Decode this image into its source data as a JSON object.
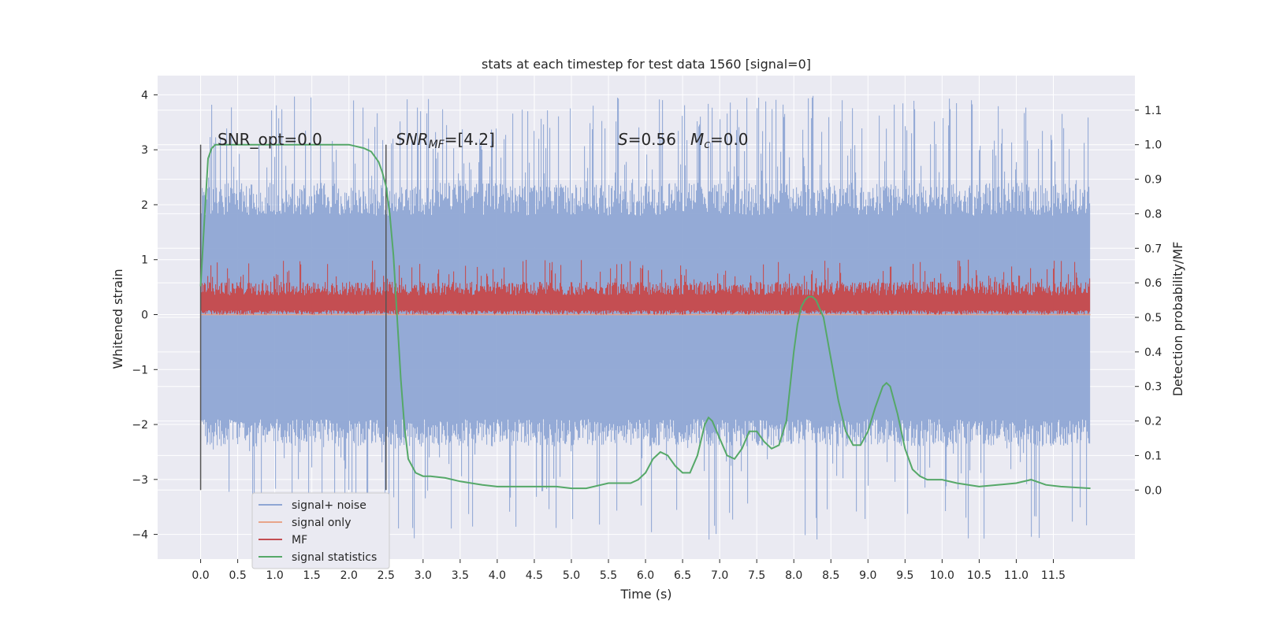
{
  "chart_data": {
    "type": "line",
    "title": "stats at each timestep for test data 1560 [signal=0]",
    "xlabel": "Time (s)",
    "ylabel": "Whitened strain",
    "ylabel_right": "Detection probability/MF",
    "xlim": [
      -0.58,
      12.6
    ],
    "ylim": [
      -4.45,
      4.35
    ],
    "ylim_right": [
      -0.2,
      1.2
    ],
    "x_ticks": [
      "0.0",
      "0.5",
      "1.0",
      "1.5",
      "2.0",
      "2.5",
      "3.0",
      "3.5",
      "4.0",
      "4.5",
      "5.0",
      "5.5",
      "6.0",
      "6.5",
      "7.0",
      "7.5",
      "8.0",
      "8.5",
      "9.0",
      "9.5",
      "10.0",
      "10.5",
      "11.0",
      "11.5"
    ],
    "y_ticks": [
      "−4",
      "−3",
      "−2",
      "−1",
      "0",
      "1",
      "2",
      "3",
      "4"
    ],
    "y_ticks_right": [
      "0.0",
      "0.1",
      "0.2",
      "0.3",
      "0.4",
      "0.5",
      "0.6",
      "0.7",
      "0.8",
      "0.9",
      "1.0",
      "1.1"
    ],
    "grid": true,
    "legend_position": "lower-left",
    "annotations": {
      "snr_opt": "SNR_opt=0.0",
      "snr_mf_base": "SNR",
      "snr_mf_sub": "MF",
      "snr_mf_rest": "=[4.2]",
      "s_label": "S",
      "s_value": "=0.56",
      "mc_label": "M",
      "mc_sub": "c",
      "mc_value": "=0.0"
    },
    "vlines": [
      0.0,
      2.5
    ],
    "series": [
      {
        "name": "signal+ noise",
        "color": "#8fa6d4",
        "axis": "left",
        "x_range": [
          0.0,
          12.0
        ],
        "envelope_typical": [
          -2.3,
          2.4
        ],
        "extremes": [
          -4.1,
          4.0
        ]
      },
      {
        "name": "signal only",
        "color": "#e8a58a",
        "axis": "left",
        "x": [
          0.0,
          12.0
        ],
        "y": [
          0.0,
          0.0
        ]
      },
      {
        "name": "MF",
        "color": "#c44e52",
        "axis": "left",
        "x_range": [
          0.0,
          12.0
        ],
        "envelope_typical": [
          0.0,
          0.6
        ],
        "extremes": [
          0.0,
          1.0
        ]
      },
      {
        "name": "signal statistics",
        "color": "#55a868",
        "axis": "right",
        "x": [
          0.0,
          0.05,
          0.1,
          0.15,
          0.2,
          0.3,
          0.5,
          1.0,
          1.5,
          2.0,
          2.2,
          2.3,
          2.4,
          2.45,
          2.5,
          2.55,
          2.6,
          2.65,
          2.7,
          2.75,
          2.8,
          2.9,
          3.0,
          3.1,
          3.3,
          3.5,
          3.8,
          4.0,
          4.2,
          4.5,
          4.8,
          5.0,
          5.2,
          5.5,
          5.8,
          5.9,
          6.0,
          6.1,
          6.2,
          6.3,
          6.4,
          6.5,
          6.6,
          6.7,
          6.8,
          6.85,
          6.9,
          7.0,
          7.1,
          7.2,
          7.3,
          7.4,
          7.5,
          7.6,
          7.7,
          7.8,
          7.9,
          8.0,
          8.05,
          8.1,
          8.15,
          8.2,
          8.25,
          8.3,
          8.4,
          8.5,
          8.6,
          8.7,
          8.8,
          8.9,
          9.0,
          9.1,
          9.2,
          9.25,
          9.3,
          9.4,
          9.5,
          9.6,
          9.7,
          9.8,
          10.0,
          10.2,
          10.5,
          11.0,
          11.2,
          11.4,
          11.6,
          12.0
        ],
        "y": [
          0.59,
          0.78,
          0.96,
          0.99,
          1.0,
          1.0,
          1.0,
          1.0,
          1.0,
          1.0,
          0.99,
          0.98,
          0.95,
          0.92,
          0.88,
          0.8,
          0.68,
          0.5,
          0.32,
          0.18,
          0.09,
          0.05,
          0.04,
          0.04,
          0.035,
          0.025,
          0.015,
          0.01,
          0.01,
          0.01,
          0.01,
          0.005,
          0.005,
          0.02,
          0.02,
          0.03,
          0.05,
          0.09,
          0.11,
          0.1,
          0.07,
          0.05,
          0.05,
          0.1,
          0.19,
          0.21,
          0.2,
          0.15,
          0.1,
          0.09,
          0.12,
          0.17,
          0.17,
          0.14,
          0.12,
          0.13,
          0.2,
          0.4,
          0.48,
          0.53,
          0.55,
          0.56,
          0.56,
          0.55,
          0.5,
          0.38,
          0.26,
          0.17,
          0.13,
          0.13,
          0.17,
          0.24,
          0.3,
          0.31,
          0.3,
          0.22,
          0.12,
          0.06,
          0.04,
          0.03,
          0.03,
          0.02,
          0.01,
          0.02,
          0.03,
          0.015,
          0.01,
          0.005
        ]
      }
    ]
  }
}
